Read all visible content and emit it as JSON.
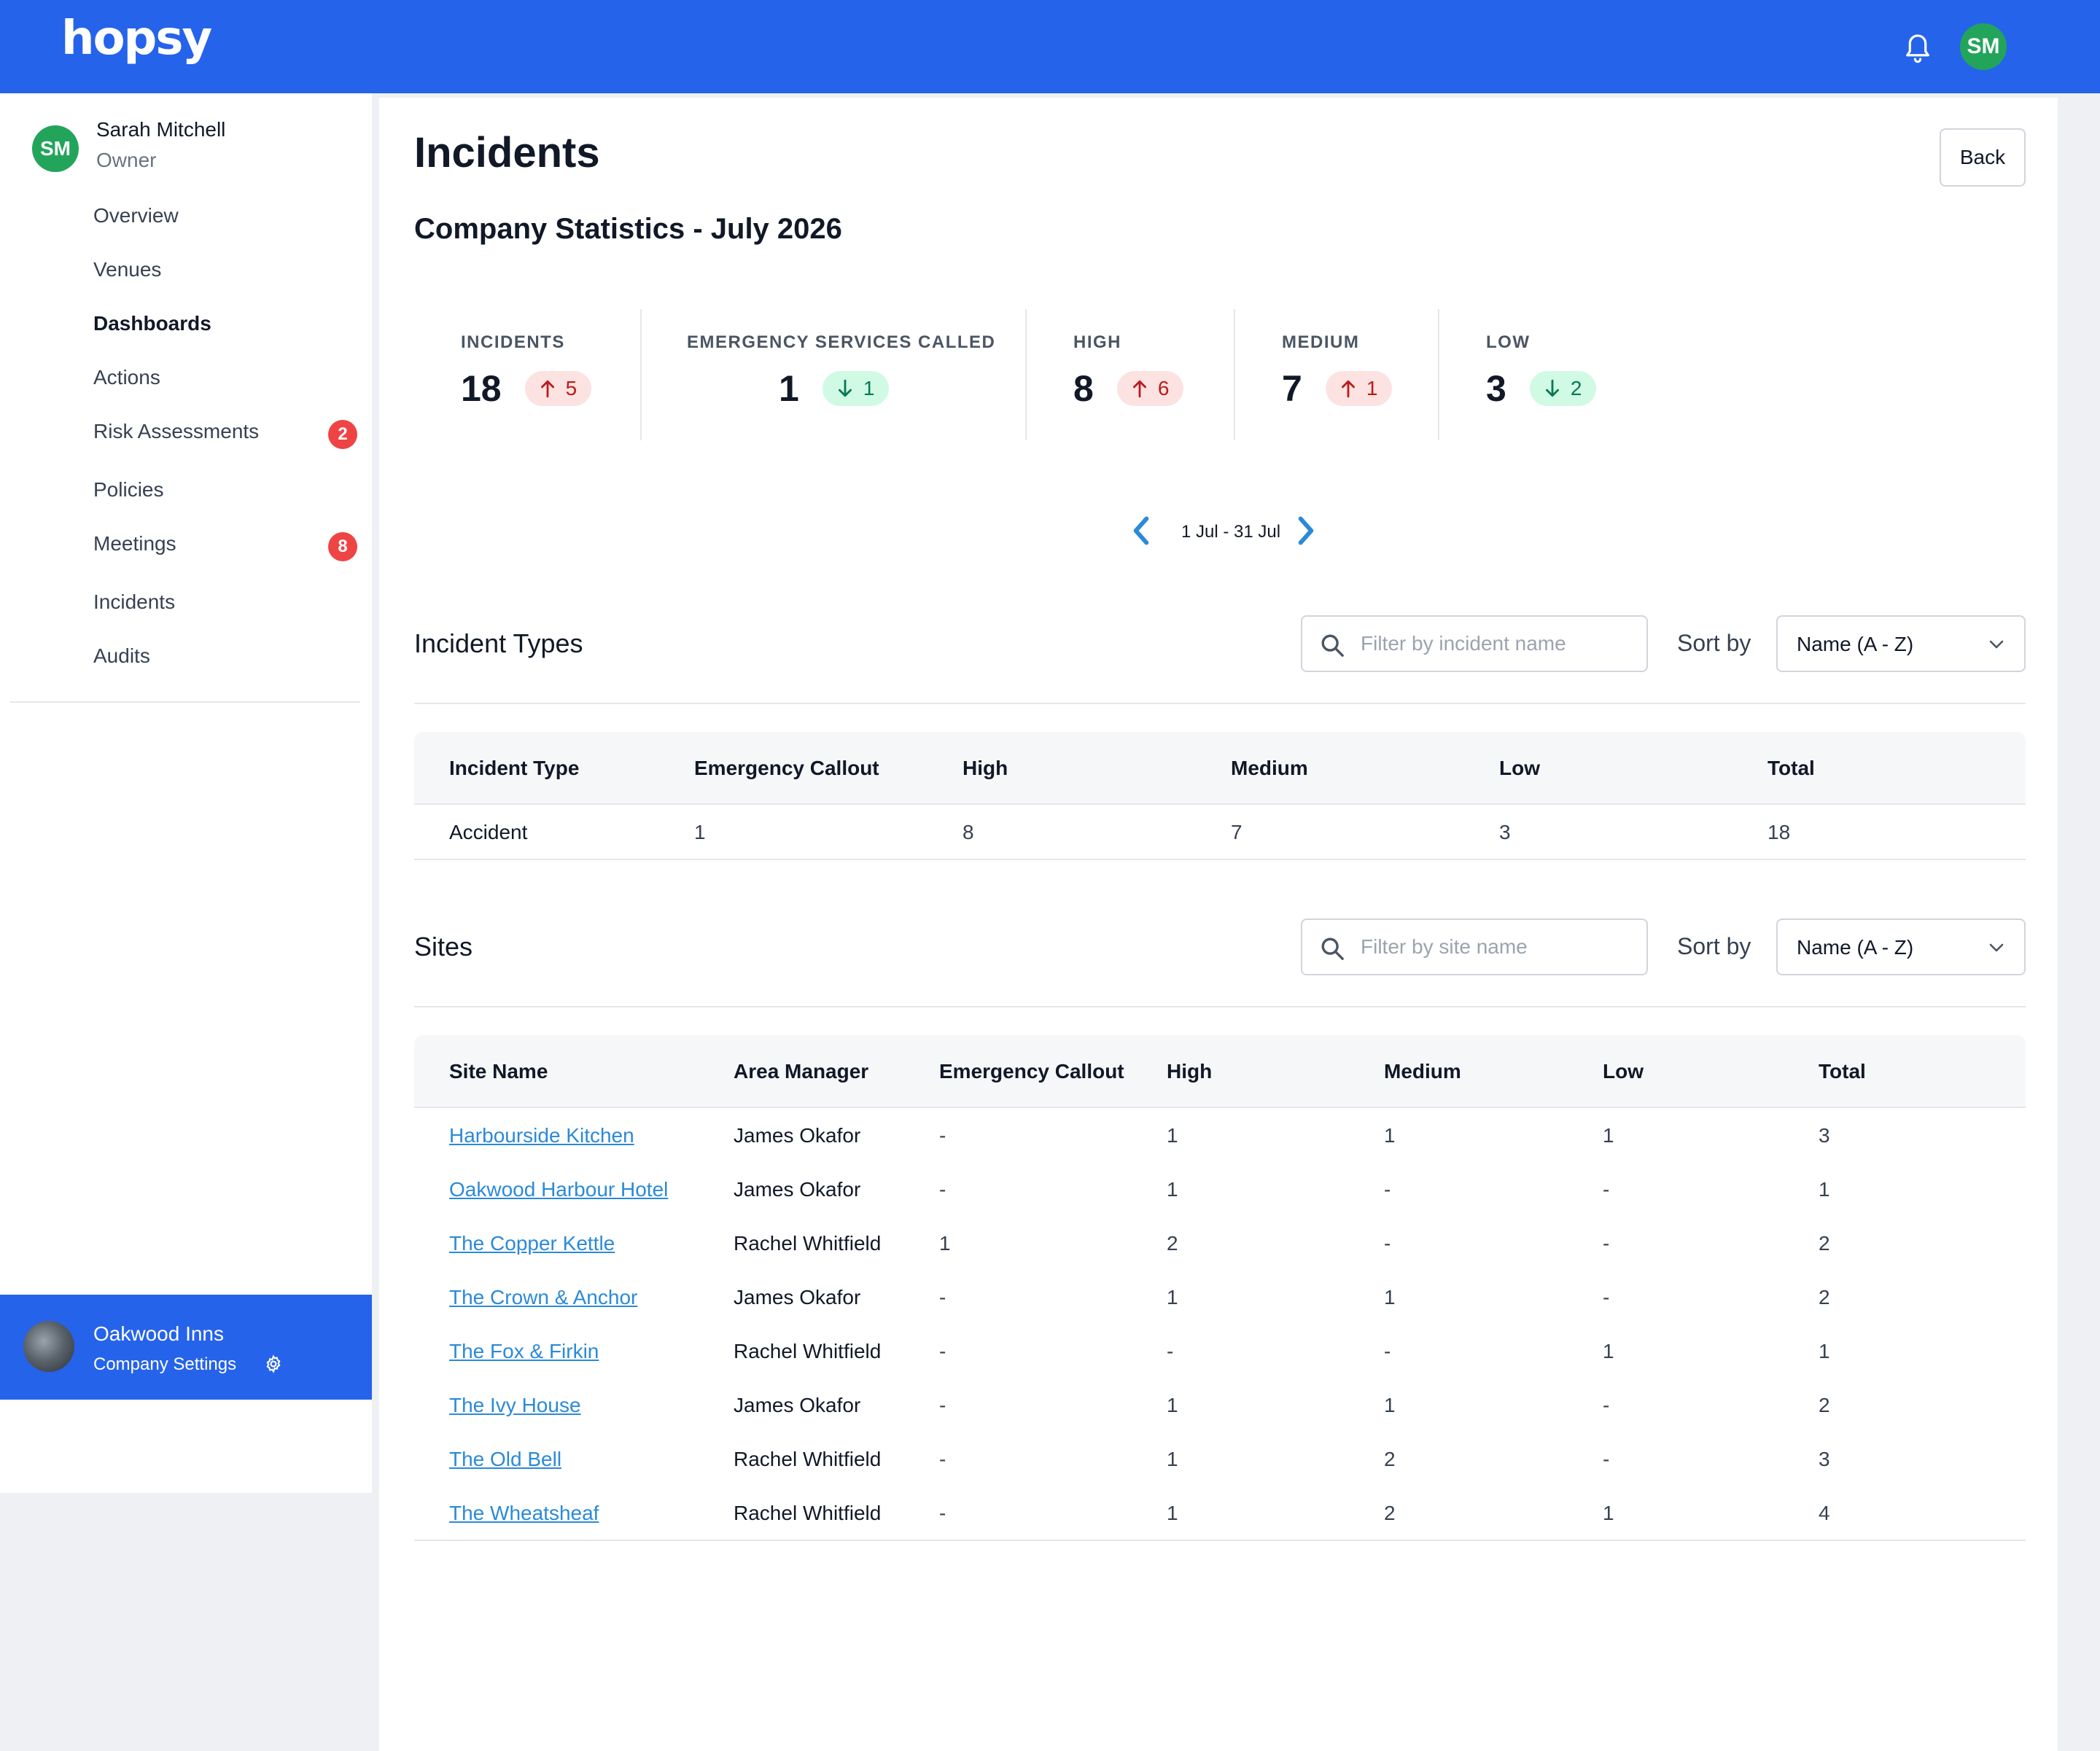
{
  "app": {
    "logo": "hopsy",
    "user_initials": "SM"
  },
  "sidebar": {
    "user": {
      "initials": "SM",
      "name": "Sarah Mitchell",
      "role": "Owner"
    },
    "items": [
      {
        "label": "Overview"
      },
      {
        "label": "Venues"
      },
      {
        "label": "Dashboards",
        "active": true
      },
      {
        "label": "Actions"
      },
      {
        "label": "Risk Assessments",
        "badge": "2"
      },
      {
        "label": "Policies"
      },
      {
        "label": "Meetings",
        "badge": "8"
      },
      {
        "label": "Incidents"
      },
      {
        "label": "Audits"
      }
    ],
    "company": {
      "name": "Oakwood Inns",
      "settings_label": "Company Settings"
    }
  },
  "main": {
    "title": "Incidents",
    "back_label": "Back",
    "subtitle": "Company Statistics - July 2026",
    "stats": [
      {
        "label": "INCIDENTS",
        "value": "18",
        "delta": "5",
        "direction": "up"
      },
      {
        "label": "EMERGENCY SERVICES CALLED",
        "value": "1",
        "delta": "1",
        "direction": "down"
      },
      {
        "label": "HIGH",
        "value": "8",
        "delta": "6",
        "direction": "up"
      },
      {
        "label": "MEDIUM",
        "value": "7",
        "delta": "1",
        "direction": "up"
      },
      {
        "label": "LOW",
        "value": "3",
        "delta": "2",
        "direction": "down"
      }
    ],
    "date_range": "1 Jul - 31 Jul",
    "incident_types": {
      "title": "Incident Types",
      "search_placeholder": "Filter by incident name",
      "sort_label": "Sort by",
      "sort_value": "Name (A - Z)",
      "columns": [
        "Incident Type",
        "Emergency Callout",
        "High",
        "Medium",
        "Low",
        "Total"
      ],
      "rows": [
        [
          "Accident",
          "1",
          "8",
          "7",
          "3",
          "18"
        ]
      ]
    },
    "sites": {
      "title": "Sites",
      "search_placeholder": "Filter by site name",
      "sort_label": "Sort by",
      "sort_value": "Name (A - Z)",
      "columns": [
        "Site Name",
        "Area Manager",
        "Emergency Callout",
        "High",
        "Medium",
        "Low",
        "Total"
      ],
      "rows": [
        [
          "Harbourside Kitchen",
          "James Okafor",
          "-",
          "1",
          "1",
          "1",
          "3"
        ],
        [
          "Oakwood Harbour Hotel",
          "James Okafor",
          "-",
          "1",
          "-",
          "-",
          "1"
        ],
        [
          "The Copper Kettle",
          "Rachel Whitfield",
          "1",
          "2",
          "-",
          "-",
          "2"
        ],
        [
          "The Crown & Anchor",
          "James Okafor",
          "-",
          "1",
          "1",
          "-",
          "2"
        ],
        [
          "The Fox & Firkin",
          "Rachel Whitfield",
          "-",
          "-",
          "-",
          "1",
          "1"
        ],
        [
          "The Ivy House",
          "James Okafor",
          "-",
          "1",
          "1",
          "-",
          "2"
        ],
        [
          "The Old Bell",
          "Rachel Whitfield",
          "-",
          "1",
          "2",
          "-",
          "3"
        ],
        [
          "The Wheatsheaf",
          "Rachel Whitfield",
          "-",
          "1",
          "2",
          "1",
          "4"
        ]
      ]
    }
  },
  "colors": {
    "brand": "#2563eb",
    "avatar": "#22a55a",
    "badge": "#ef4444",
    "link": "#2b8ad8",
    "delta_up_bg": "#fde2e2",
    "delta_down_bg": "#d1fae5"
  }
}
